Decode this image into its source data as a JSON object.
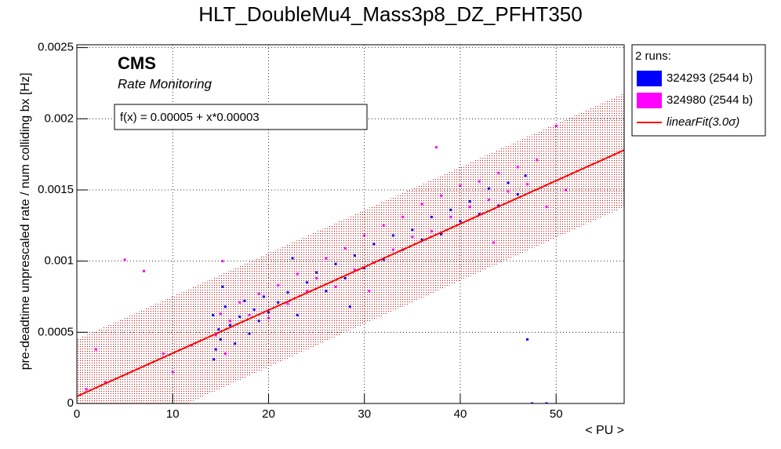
{
  "chart_data": {
    "type": "scatter",
    "title": "HLT_DoubleMu4_Mass3p8_DZ_PFHT350",
    "x_label": "< PU >",
    "y_label": "pre-deadtime unprescaled rate / num colliding bx [Hz]",
    "annotations": {
      "experiment": "CMS",
      "subtitle": "Rate Monitoring",
      "fit_formula": "f(x) = 0.00005 + x*0.00003"
    },
    "legend_title": "2 runs:",
    "legend_position": "outside-right",
    "grid": true,
    "xlim": [
      0,
      57.1
    ],
    "ylim": [
      0,
      0.00252
    ],
    "xticks": [
      0,
      10,
      20,
      30,
      40,
      50
    ],
    "yticks": [
      0,
      0.0005,
      0.001,
      0.0015,
      0.002,
      0.0025
    ],
    "series": [
      {
        "name": "324293 (2544 b)",
        "color": "#0000ff",
        "x": [
          14.2,
          14.5,
          14.8,
          15,
          15.5,
          16,
          16.5,
          17,
          17.5,
          18,
          18.5,
          19,
          19.5,
          20,
          21,
          22,
          23,
          24,
          25,
          26,
          27,
          28,
          29,
          30,
          31,
          32,
          33,
          34,
          35,
          36,
          37,
          38,
          39,
          40,
          41,
          42,
          43,
          44,
          45,
          46,
          47,
          46.8,
          47.5,
          49,
          14.3,
          15.2,
          22.5,
          28.5
        ],
        "values": [
          0.00062,
          0.00038,
          0.00052,
          0.00045,
          0.00068,
          0.00055,
          0.00042,
          0.00061,
          0.00072,
          0.00049,
          0.00066,
          0.00058,
          0.00075,
          0.00064,
          0.00071,
          0.00078,
          0.00062,
          0.00085,
          0.00092,
          0.00079,
          0.00098,
          0.00088,
          0.00104,
          0.00095,
          0.00112,
          0.00101,
          0.00118,
          0.00108,
          0.00122,
          0.00115,
          0.00131,
          0.00119,
          0.00136,
          0.00128,
          0.00142,
          0.00133,
          0.00151,
          0.00139,
          0.00155,
          0.00147,
          0.00045,
          0.0016,
          0,
          0,
          0.00031,
          0.00082,
          0.00102,
          0.00068
        ]
      },
      {
        "name": "324980 (2544 b)",
        "color": "#ff00ff",
        "x": [
          1,
          2,
          3,
          5,
          7,
          9,
          10,
          12,
          14.5,
          15,
          15.5,
          16,
          17,
          18,
          19,
          20,
          21,
          22,
          23,
          24,
          25,
          26,
          27,
          28,
          29,
          30,
          31,
          32,
          33,
          34,
          35,
          36,
          37,
          38,
          39,
          40,
          41,
          42,
          43,
          44,
          45,
          46,
          47,
          48,
          49,
          50,
          51,
          15.2,
          30.5,
          37.5,
          43.5
        ],
        "values": [
          0.0001,
          0.00038,
          0.00015,
          0.00101,
          0.00093,
          0.00035,
          0.00022,
          0.00041,
          0.00048,
          0.00063,
          0.00035,
          0.00058,
          0.00071,
          0.00062,
          0.00077,
          0.0006,
          0.00083,
          0.0007,
          0.00091,
          0.00079,
          0.00088,
          0.00102,
          0.00082,
          0.00109,
          0.00094,
          0.00118,
          0.00099,
          0.00125,
          0.00108,
          0.00131,
          0.00117,
          0.0014,
          0.00121,
          0.00146,
          0.00131,
          0.00153,
          0.00138,
          0.00156,
          0.00143,
          0.00162,
          0.00149,
          0.00166,
          0.00154,
          0.00171,
          0.00138,
          0.00195,
          0.0015,
          0.001,
          0.00079,
          0.0018,
          0.00113
        ]
      }
    ],
    "fit": {
      "name": "linearFit(3.0σ)",
      "color": "#ff0000",
      "x": [
        0,
        57.1
      ],
      "values": [
        5e-05,
        0.00178
      ],
      "band_upper": [
        0.00045,
        0.00218
      ],
      "band_lower": [
        -0.00035,
        0.00138
      ]
    }
  }
}
